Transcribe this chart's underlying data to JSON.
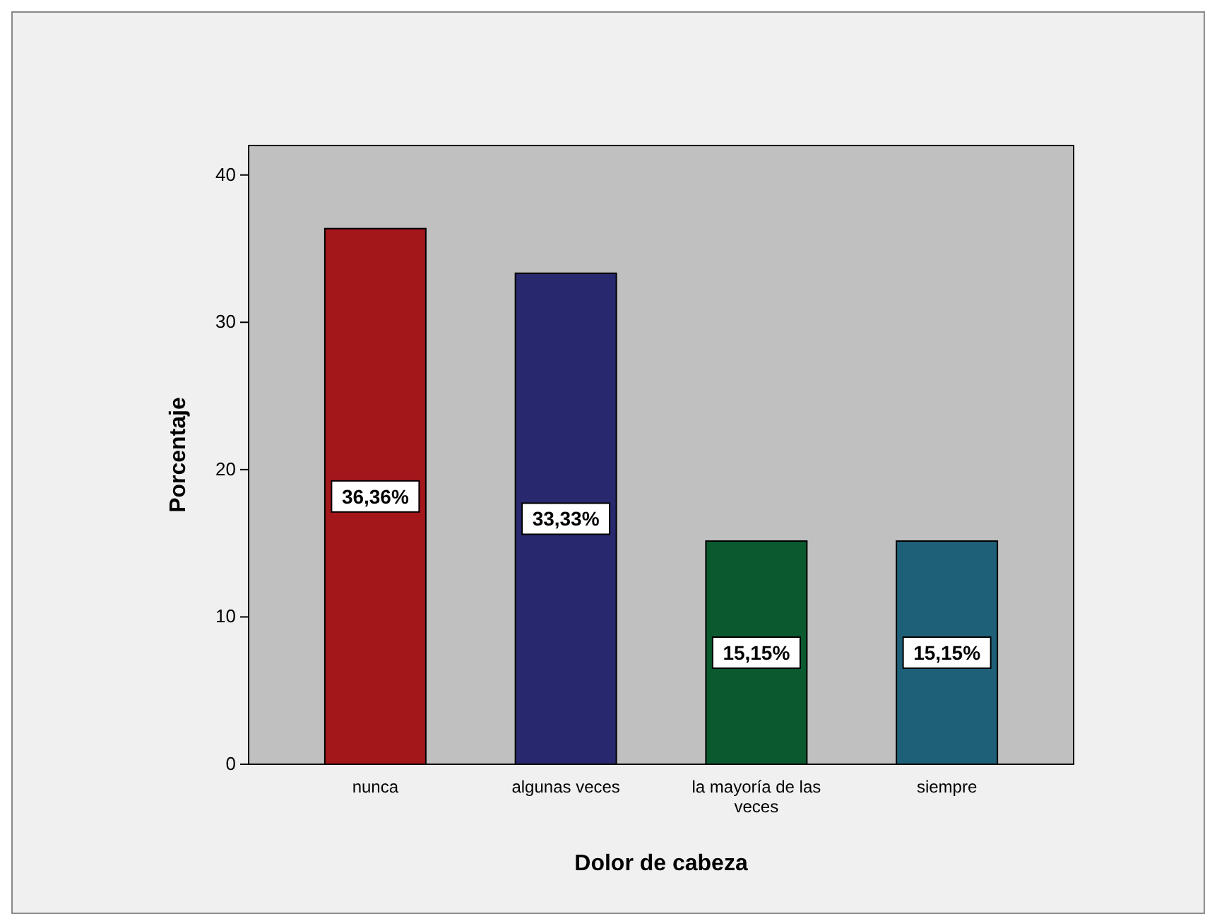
{
  "chart_data": {
    "type": "bar",
    "xlabel": "Dolor de cabeza",
    "ylabel": "Porcentaje",
    "categories": [
      "nunca",
      "algunas veces",
      "la mayoría de las veces",
      "siempre"
    ],
    "values": [
      36.36,
      33.33,
      15.15,
      15.15
    ],
    "colors": [
      "#a3161a",
      "#28286e",
      "#0b5a2f",
      "#1e6078"
    ],
    "value_labels": [
      "36,36%",
      "33,33%",
      "15,15%",
      "15,15%"
    ],
    "ylim": [
      0,
      42
    ],
    "yticks": [
      0,
      10,
      20,
      30,
      40
    ],
    "grid": false
  }
}
